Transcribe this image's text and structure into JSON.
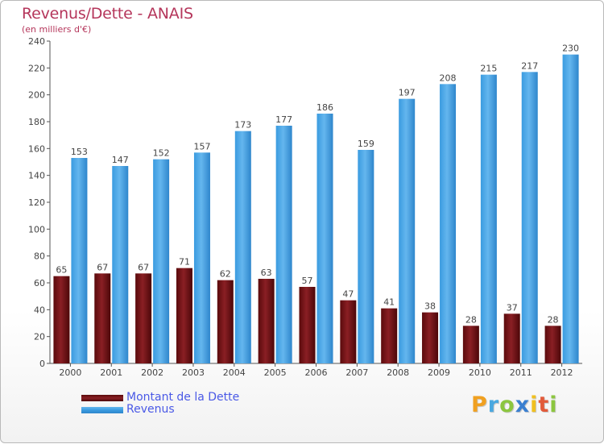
{
  "title": "Revenus/Dette - ANAIS",
  "subtitle": "(en milliers d'€)",
  "chart_data": {
    "type": "bar",
    "title": "Revenus/Dette - ANAIS",
    "ylabel": "(en milliers d'€)",
    "xlabel": "",
    "ylim": [
      0,
      240
    ],
    "yticks": [
      0,
      20,
      40,
      60,
      80,
      100,
      120,
      140,
      160,
      180,
      200,
      220,
      240
    ],
    "grid": false,
    "categories": [
      "2000",
      "2001",
      "2002",
      "2003",
      "2004",
      "2005",
      "2006",
      "2007",
      "2008",
      "2009",
      "2010",
      "2011",
      "2012"
    ],
    "series": [
      {
        "name": "Montant de la Dette",
        "color": "#6b0f12",
        "values": [
          65,
          67,
          67,
          71,
          62,
          63,
          57,
          47,
          41,
          38,
          28,
          37,
          28
        ]
      },
      {
        "name": "Revenus",
        "color": "#3d9ee0",
        "values": [
          153,
          147,
          152,
          157,
          173,
          177,
          186,
          159,
          197,
          208,
          215,
          217,
          230
        ]
      }
    ],
    "legend_position": "bottom-left"
  },
  "legend": {
    "items": [
      {
        "label": "Montant de la Dette",
        "color": "#6b0f12"
      },
      {
        "label": "Revenus",
        "color": "#3d9ee0"
      }
    ]
  },
  "logo": {
    "letters": [
      "P",
      "r",
      "o",
      "x",
      "i",
      "t",
      "i"
    ],
    "colors": [
      "#f0a020",
      "#4aa8e0",
      "#8cc63f",
      "#3a7fd0",
      "#f0c020",
      "#e25a3a",
      "#8cc63f"
    ]
  }
}
